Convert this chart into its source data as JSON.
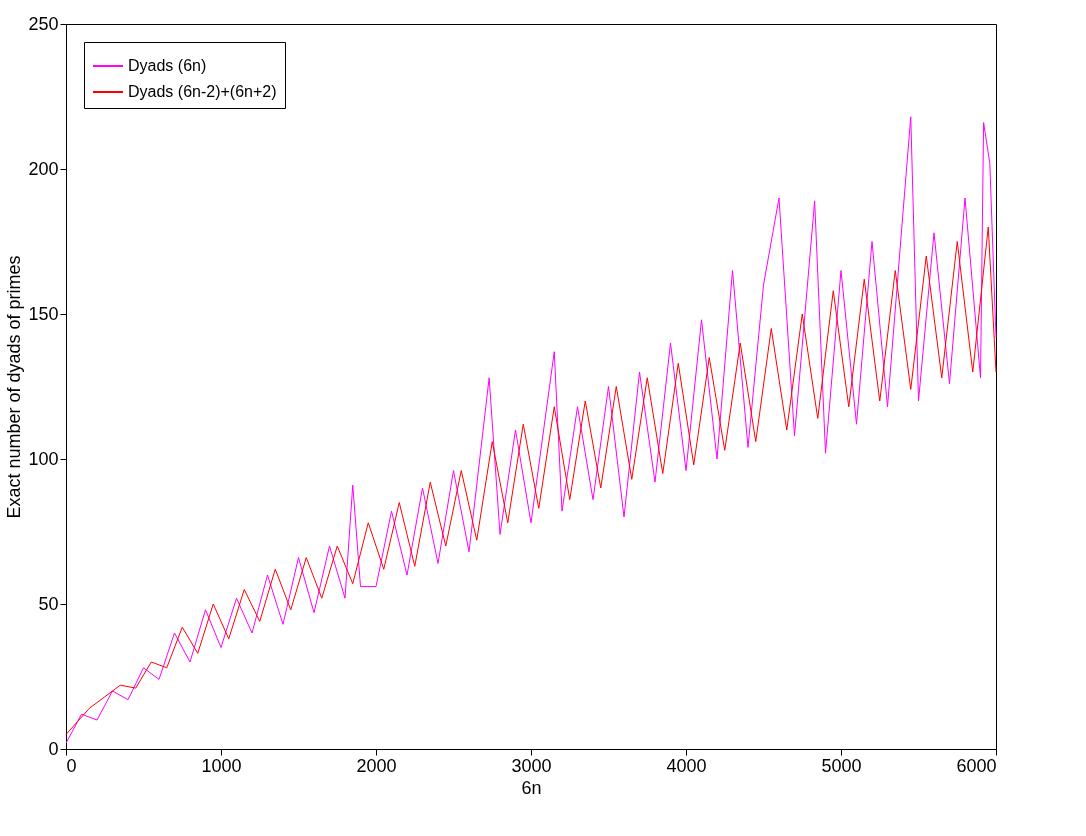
{
  "chart_data": {
    "type": "line",
    "xlabel": "6n",
    "ylabel": "Exact number of dyads of primes",
    "xlim": [
      0,
      6000
    ],
    "xticks": [
      0,
      1000,
      2000,
      3000,
      4000,
      5000,
      6000
    ],
    "ylim": [
      0,
      250
    ],
    "yticks": [
      0,
      50,
      100,
      150,
      200,
      250
    ],
    "grid": false,
    "legend": "top left",
    "line_style": "solid",
    "marker": "none",
    "series": [
      {
        "name": "Dyads (6n)",
        "color": "#ff00ff",
        "x": [
          0,
          100,
          200,
          300,
          400,
          500,
          600,
          700,
          800,
          900,
          1000,
          1100,
          1200,
          1300,
          1400,
          1500,
          1600,
          1700,
          1800,
          1850,
          1900,
          2000,
          2100,
          2200,
          2300,
          2400,
          2500,
          2600,
          2730,
          2800,
          2900,
          3000,
          3150,
          3200,
          3300,
          3400,
          3500,
          3600,
          3700,
          3800,
          3900,
          4000,
          4100,
          4200,
          4300,
          4400,
          4500,
          4600,
          4700,
          4830,
          4900,
          5000,
          5100,
          5200,
          5300,
          5400,
          5450,
          5500,
          5600,
          5700,
          5800,
          5900,
          5920,
          5960,
          6000
        ],
        "values": [
          2,
          12,
          10,
          20,
          17,
          28,
          24,
          40,
          30,
          48,
          35,
          52,
          40,
          60,
          43,
          66,
          47,
          70,
          52,
          91,
          56,
          56,
          82,
          60,
          90,
          64,
          96,
          68,
          128,
          74,
          110,
          78,
          137,
          82,
          118,
          86,
          125,
          80,
          130,
          92,
          140,
          96,
          148,
          100,
          165,
          104,
          160,
          190,
          108,
          189,
          102,
          165,
          112,
          175,
          118,
          185,
          218,
          120,
          178,
          126,
          190,
          128,
          216,
          202,
          142
        ]
      },
      {
        "name": "Dyads (6n-2)+(6n+2)",
        "color": "#ff0000",
        "x": [
          0,
          50,
          150,
          250,
          350,
          450,
          550,
          650,
          750,
          850,
          950,
          1050,
          1150,
          1250,
          1350,
          1450,
          1550,
          1650,
          1750,
          1850,
          1950,
          2050,
          2150,
          2250,
          2350,
          2450,
          2550,
          2650,
          2750,
          2850,
          2950,
          3050,
          3150,
          3250,
          3350,
          3450,
          3550,
          3650,
          3750,
          3850,
          3950,
          4050,
          4150,
          4250,
          4350,
          4450,
          4550,
          4650,
          4750,
          4850,
          4950,
          5050,
          5150,
          5250,
          5350,
          5450,
          5550,
          5650,
          5750,
          5850,
          5950,
          6000
        ],
        "values": [
          5,
          8,
          14,
          18,
          22,
          21,
          30,
          28,
          42,
          33,
          50,
          38,
          55,
          44,
          62,
          48,
          66,
          52,
          70,
          57,
          78,
          62,
          85,
          63,
          92,
          70,
          96,
          72,
          106,
          78,
          112,
          83,
          118,
          86,
          120,
          90,
          125,
          93,
          128,
          95,
          133,
          98,
          135,
          103,
          140,
          106,
          145,
          110,
          150,
          114,
          158,
          118,
          162,
          120,
          165,
          124,
          170,
          128,
          175,
          130,
          180,
          130
        ]
      }
    ]
  }
}
